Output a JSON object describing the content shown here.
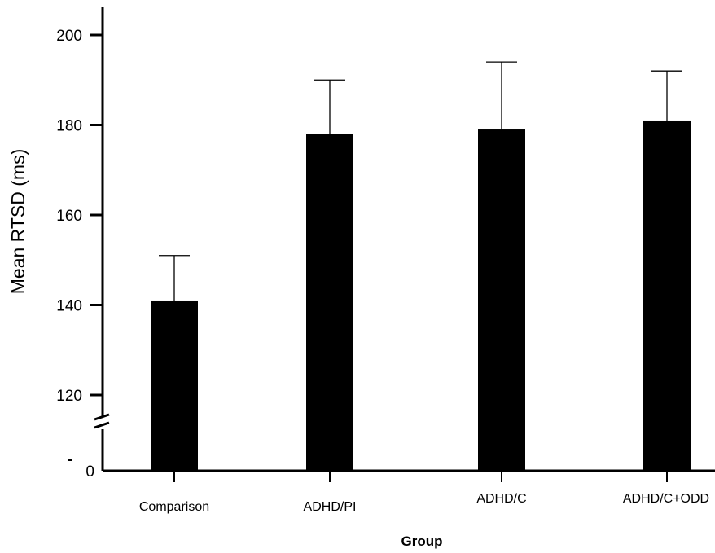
{
  "chart_data": {
    "type": "bar",
    "title": "",
    "xlabel": "Group",
    "ylabel": "Mean RTSD (ms)",
    "categories": [
      "Comparison",
      "ADHD/PI",
      "ADHD/C",
      "ADHD/C+ODD"
    ],
    "values": [
      141,
      178,
      179,
      181
    ],
    "error_upper": [
      151,
      190,
      194,
      192
    ],
    "yticks": [
      0,
      120,
      140,
      160,
      180,
      200
    ],
    "ytick_labels": [
      "0",
      "120",
      "140",
      "160",
      "180",
      "200"
    ],
    "ylim": [
      0,
      205
    ],
    "axis_break": true,
    "legend": "none",
    "grid": false,
    "colors": {
      "bar": "#000000",
      "axis": "#000000"
    }
  }
}
